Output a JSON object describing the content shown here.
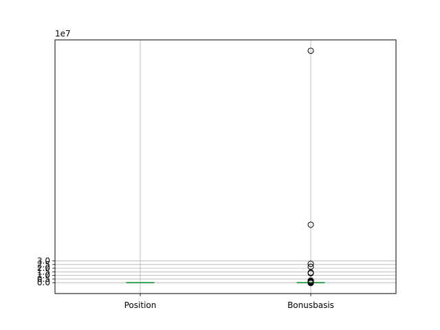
{
  "chart_data": {
    "type": "boxplot",
    "title": "",
    "xlabel": "",
    "ylabel": "",
    "y_offset_label": "1e7",
    "ylim": [
      -1.5,
      33.5
    ],
    "y_ticks": [
      0.0,
      0.5,
      1.0,
      1.5,
      2.0,
      2.5,
      3.0
    ],
    "y_tick_labels": [
      "0.0",
      "0.5",
      "1.0",
      "1.5",
      "2.0",
      "2.5",
      "3.0"
    ],
    "grid": true,
    "categories": [
      "Position",
      "Bonusbasis"
    ],
    "boxes": [
      {
        "name": "Position",
        "whisker_low": 0.0,
        "q1": 0.0,
        "median": 0.0,
        "q3": 0.0,
        "whisker_high": 0.0,
        "outliers": []
      },
      {
        "name": "Bonusbasis",
        "whisker_low": 0.0,
        "q1": 0.0,
        "median": 0.0,
        "q3": 0.0,
        "whisker_high": 0.0,
        "outliers": [
          32.0,
          8.0,
          2.6,
          2.2,
          1.4,
          1.3,
          0.3,
          0.2,
          0.1,
          0.05,
          -0.05
        ]
      }
    ],
    "colors": {
      "box": "#1f77b4",
      "median": "#2ca02c",
      "grid": "#b0b0b0",
      "outlier": "#000000"
    }
  }
}
